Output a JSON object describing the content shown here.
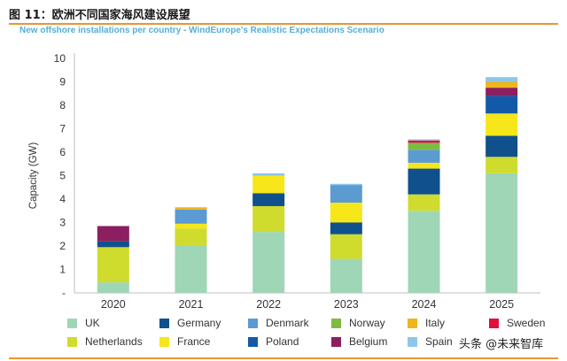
{
  "figure": {
    "title": "图 11：欧洲不同国家海风建设展望",
    "watermark": "头条 @未来智库"
  },
  "chart_data": {
    "type": "bar",
    "stacked": true,
    "title": "New offshore installations per country - WindEurope's Realistic Expectations Scenario",
    "ylabel": "Capacity (GW)",
    "xlabel": "",
    "ylim": [
      0,
      10
    ],
    "yticks": [
      "-",
      "1",
      "2",
      "3",
      "4",
      "5",
      "6",
      "7",
      "8",
      "9",
      "10"
    ],
    "grid": false,
    "legend_position": "bottom",
    "categories": [
      "2020",
      "2021",
      "2022",
      "2023",
      "2024",
      "2025"
    ],
    "series": [
      {
        "name": "UK",
        "color": "#9fd6b6",
        "values": [
          0.45,
          2.0,
          2.6,
          1.45,
          3.5,
          5.1
        ]
      },
      {
        "name": "Netherlands",
        "color": "#cfdc2e",
        "values": [
          1.5,
          0.75,
          1.1,
          1.05,
          0.7,
          0.7
        ]
      },
      {
        "name": "Germany",
        "color": "#10508c",
        "values": [
          0.25,
          0.0,
          0.55,
          0.5,
          1.1,
          0.9
        ]
      },
      {
        "name": "France",
        "color": "#f6e61a",
        "values": [
          0.0,
          0.2,
          0.75,
          0.85,
          0.25,
          0.95
        ]
      },
      {
        "name": "Denmark",
        "color": "#5b9bd2",
        "values": [
          0.0,
          0.6,
          0.0,
          0.75,
          0.55,
          0.0
        ]
      },
      {
        "name": "Poland",
        "color": "#125aa8",
        "values": [
          0.0,
          0.0,
          0.0,
          0.0,
          0.0,
          0.75
        ]
      },
      {
        "name": "Norway",
        "color": "#7dbb42",
        "values": [
          0.0,
          0.0,
          0.0,
          0.0,
          0.3,
          0.0
        ]
      },
      {
        "name": "Belgium",
        "color": "#8b1f5f",
        "values": [
          0.65,
          0.0,
          0.0,
          0.0,
          0.0,
          0.35
        ]
      },
      {
        "name": "Italy",
        "color": "#f0b41c",
        "values": [
          0.0,
          0.1,
          0.0,
          0.0,
          0.0,
          0.25
        ]
      },
      {
        "name": "Sweden",
        "color": "#e0103c",
        "values": [
          0.0,
          0.0,
          0.0,
          0.0,
          0.1,
          0.0
        ]
      },
      {
        "name": "Spain",
        "color": "#8cc6ea",
        "values": [
          0.0,
          0.0,
          0.1,
          0.05,
          0.05,
          0.2
        ]
      }
    ]
  }
}
